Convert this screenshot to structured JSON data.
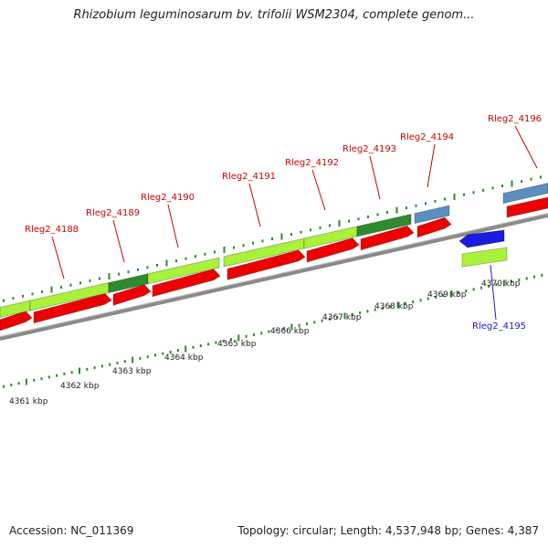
{
  "title": "Rhizobium leguminosarum bv. trifolii WSM2304, complete genom...",
  "footer": {
    "accession": "Accession: NC_011369",
    "summary": "Topology: circular; Length: 4,537,948 bp; Genes: 4,387"
  },
  "colors": {
    "backbone": "#8a8a8a",
    "cds_forward": "#ee0000",
    "gene_forward": "#aaf23a",
    "gene_alt": "#2e8b2e",
    "gene_rna": "#5a8fc0",
    "cds_reverse": "#1a1ae0",
    "tick": "#2a8a2a",
    "label_forward": "#cc0000",
    "label_reverse": "#1a1acc",
    "text": "#222222"
  },
  "scale": {
    "unit": "kbp",
    "labels": [
      "4361 kbp",
      "4362 kbp",
      "4363 kbp",
      "4364 kbp",
      "4365 kbp",
      "4366 kbp",
      "4367 kbp",
      "4368 kbp",
      "4369 kbp",
      "4370 kbp"
    ]
  },
  "genes": [
    {
      "label": "Rleg2_4188",
      "strand": "forward"
    },
    {
      "label": "Rleg2_4189",
      "strand": "forward"
    },
    {
      "label": "Rleg2_4190",
      "strand": "forward"
    },
    {
      "label": "Rleg2_4191",
      "strand": "forward"
    },
    {
      "label": "Rleg2_4192",
      "strand": "forward"
    },
    {
      "label": "Rleg2_4193",
      "strand": "forward"
    },
    {
      "label": "Rleg2_4194",
      "strand": "forward"
    },
    {
      "label": "Rleg2_4195",
      "strand": "reverse"
    },
    {
      "label": "Rleg2_4196",
      "strand": "forward"
    }
  ]
}
